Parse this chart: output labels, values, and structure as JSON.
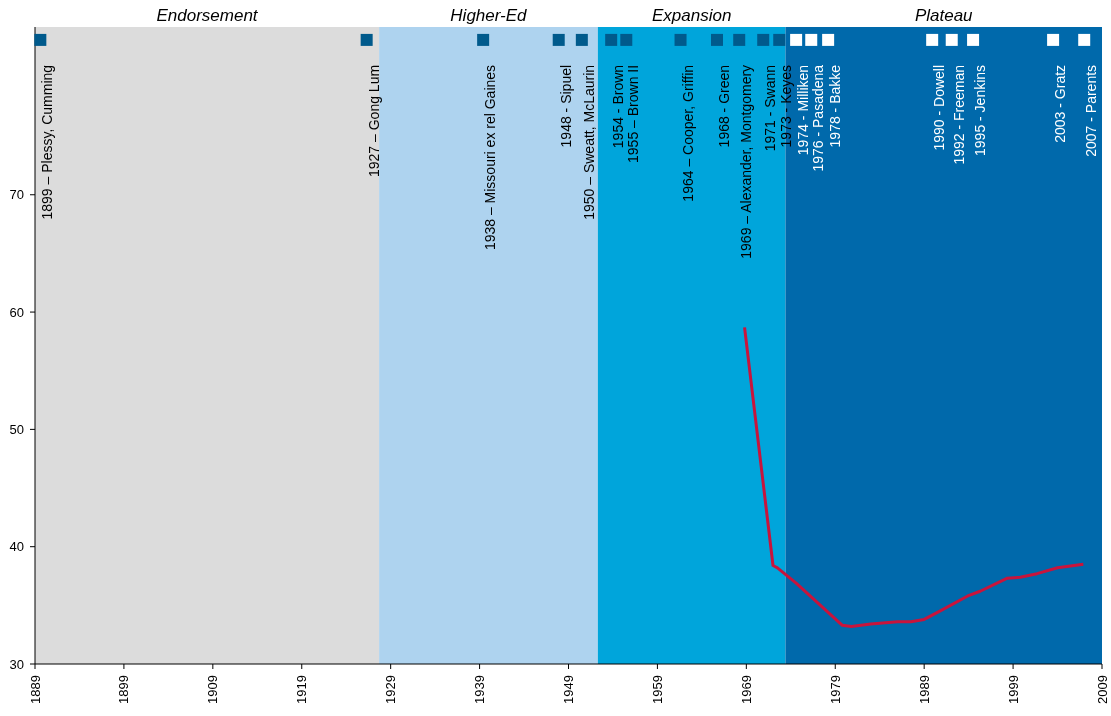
{
  "chart_data": {
    "type": "line",
    "xlim": [
      1889,
      2009
    ],
    "xticks": [
      1889,
      1899,
      1909,
      1919,
      1929,
      1939,
      1949,
      1959,
      1969,
      1979,
      1989,
      1999,
      2009
    ],
    "ylim": [
      30,
      84.3
    ],
    "yticks": [
      30,
      40,
      50,
      60,
      70
    ],
    "grid": false,
    "legend": false,
    "series": [
      {
        "color": "#c8143c",
        "x": [
          1968.8,
          1972.0,
          1972.5,
          1974.6,
          1979.8,
          1980.8,
          1983.0,
          1986.0,
          1987.5,
          1989.0,
          1990.5,
          1993.9,
          1995.3,
          1998.3,
          1999.8,
          2001.7,
          2004.0,
          2006.9
        ],
        "values": [
          58.7,
          38.4,
          38.2,
          36.9,
          33.3,
          33.2,
          33.4,
          33.6,
          33.6,
          33.8,
          34.4,
          35.8,
          36.2,
          37.3,
          37.4,
          37.7,
          38.2,
          38.5
        ]
      }
    ],
    "bands": [
      {
        "axis": "x",
        "from": 1889,
        "to": 1927.7,
        "label": "Endorsement",
        "color": "#dcdcdc"
      },
      {
        "axis": "x",
        "from": 1927.7,
        "to": 1952.3,
        "label": "Higher-Ed",
        "color": "#aed3ef"
      },
      {
        "axis": "x",
        "from": 1952.3,
        "to": 1973.4,
        "label": "Expansion",
        "color": "#00a5db"
      },
      {
        "axis": "x",
        "from": 1973.4,
        "to": 2009,
        "label": "Plateau",
        "color": "#0069ab"
      }
    ],
    "annotations": [
      {
        "text": "1899 – Plessy, Cumming",
        "x": 1889.6,
        "y": 83.2
      },
      {
        "text": "1927 – Gong Lum",
        "x": 1926.3,
        "y": 83.2
      },
      {
        "text": "1938 – Missouri ex rel Gaines",
        "x": 1939.4,
        "y": 83.2
      },
      {
        "text": "1948 - Sipuel",
        "x": 1947.9,
        "y": 83.2
      },
      {
        "text": "1950 – Sweatt, McLaurin",
        "x": 1950.5,
        "y": 83.2
      },
      {
        "text": "1954 - Brown",
        "x": 1953.8,
        "y": 83.2
      },
      {
        "text": "1955 – Brown II",
        "x": 1955.5,
        "y": 83.2
      },
      {
        "text": "1964 – Cooper, Griffin",
        "x": 1961.6,
        "y": 83.2
      },
      {
        "text": "1968 - Green",
        "x": 1965.7,
        "y": 83.2
      },
      {
        "text": "1969 – Alexander, Montgomery",
        "x": 1968.2,
        "y": 83.2
      },
      {
        "text": "1971 - Swann",
        "x": 1970.9,
        "y": 83.2
      },
      {
        "text": "1973 - Keyes",
        "x": 1972.7,
        "y": 83.2
      },
      {
        "text": "1974 - Milliken",
        "x": 1974.6,
        "y": 83.2
      },
      {
        "text": "1976 - Pasadena",
        "x": 1976.3,
        "y": 83.2
      },
      {
        "text": "1978 - Bakke",
        "x": 1978.2,
        "y": 83.2
      },
      {
        "text": "1990 - Dowell",
        "x": 1989.9,
        "y": 83.2
      },
      {
        "text": "1992 - Freeman",
        "x": 1992.1,
        "y": 83.2
      },
      {
        "text": "1995 - Jenkins",
        "x": 1994.5,
        "y": 83.2
      },
      {
        "text": "2003 - Gratz",
        "x": 2003.5,
        "y": 83.2
      },
      {
        "text": "2007 - Parents",
        "x": 2007.0,
        "y": 83.2
      }
    ]
  }
}
